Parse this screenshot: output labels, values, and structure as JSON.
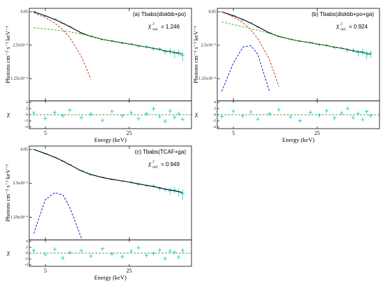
{
  "chart_data": [
    {
      "type": "line",
      "title": "(a) Tbabs(diskbb+po)",
      "annotation": {
        "symbol": "χ",
        "sup": "2",
        "sub": "red",
        "text": "= 1.246"
      },
      "xlabel": "Energy (keV)",
      "ylabel": "Photons cm⁻² s⁻¹ keV⁻¹",
      "xscale": "log",
      "yscale": "log",
      "xlim": [
        3.67,
        83
      ],
      "xticks": [
        5,
        25
      ],
      "ylim": [
        1.7e-05,
        0.068
      ],
      "yticks": [
        0.05,
        {
          "value": 0.0025,
          "label": "2.5x10⁻³"
        },
        {
          "value": 0.000125,
          "label": "1.25x10⁻⁴"
        }
      ],
      "x": [
        4,
        5,
        6,
        7,
        8,
        10,
        12,
        15,
        18,
        22,
        26,
        30,
        35,
        40,
        45,
        50,
        55,
        60,
        65,
        70
      ],
      "data": {
        "color": "#00c8d0",
        "values": [
          0.051,
          0.034,
          0.026,
          0.0175,
          0.0135,
          0.0073,
          0.0057,
          0.0041,
          0.0037,
          0.003,
          0.0028,
          0.0023,
          0.0022,
          0.0018,
          0.0018,
          0.0014,
          0.0015,
          0.0012,
          0.0013,
          0.001
        ],
        "errors": [
          0.002,
          0.0015,
          0.001,
          0.0008,
          0.0006,
          0.0004,
          0.0003,
          0.0003,
          0.0003,
          0.0003,
          0.0003,
          0.0003,
          0.0003,
          0.0003,
          0.0003,
          0.0003,
          0.0004,
          0.0004,
          0.0004,
          0.0004
        ]
      },
      "models": [
        {
          "color": "#000000",
          "dashed": false,
          "values": [
            0.05,
            0.035,
            0.025,
            0.018,
            0.013,
            0.0075,
            0.0055,
            0.0042,
            0.0036,
            0.0031,
            0.0027,
            0.0024,
            0.0021,
            0.0019,
            0.0017,
            0.0015,
            0.0014,
            0.0013,
            0.0012,
            0.0011
          ]
        },
        {
          "color": "#cc2200",
          "dashed": true,
          "values": [
            0.045,
            0.03,
            0.018,
            0.01,
            0.005,
            0.0009,
            0.00012,
            null,
            null,
            null,
            null,
            null,
            null,
            null,
            null,
            null,
            null,
            null,
            null,
            null
          ]
        },
        {
          "color": "#44aa00",
          "dashed": true,
          "values": [
            0.012,
            0.0108,
            0.0098,
            0.009,
            0.0083,
            0.0068,
            0.0055,
            0.0042,
            0.0036,
            0.0031,
            0.0027,
            0.0024,
            0.0021,
            0.0019,
            0.0017,
            0.0015,
            0.0014,
            0.0013,
            0.0012,
            0.0011
          ]
        }
      ],
      "residuals": {
        "ylabel": "χ",
        "ylim": [
          -4.5,
          4.5
        ],
        "yticks": [
          4,
          2,
          0,
          -2,
          -4
        ],
        "values": [
          0.5,
          -1.2,
          0.8,
          -0.3,
          1.5,
          -0.9,
          0.2,
          -1.8,
          1.1,
          -0.4,
          0.7,
          -1.3,
          0.3,
          1.9,
          -0.6,
          -2.1,
          1.2,
          -0.8,
          0.4,
          -1.5
        ]
      }
    },
    {
      "type": "line",
      "title": "(b) Tbabs(diskbb+po+ga)",
      "annotation": {
        "symbol": "χ",
        "sup": "2",
        "sub": "red",
        "text": "= 0.924"
      },
      "xlabel": "Energy (keV)",
      "ylabel": "Photons cm⁻² s⁻¹ keV⁻¹",
      "xscale": "log",
      "yscale": "log",
      "xlim": [
        3.67,
        83
      ],
      "xticks": [
        5,
        25
      ],
      "ylim": [
        1.7e-05,
        0.068
      ],
      "yticks": [
        0.05,
        {
          "value": 0.0025,
          "label": "2.5x10⁻³"
        },
        {
          "value": 0.000125,
          "label": "1.25x10⁻⁴"
        }
      ],
      "x": [
        4,
        5,
        6,
        7,
        8,
        10,
        12,
        15,
        18,
        22,
        26,
        30,
        35,
        40,
        45,
        50,
        55,
        60,
        65,
        70
      ],
      "data": {
        "color": "#00c8d0",
        "values": [
          0.049,
          0.036,
          0.024,
          0.0185,
          0.0128,
          0.0076,
          0.0054,
          0.0043,
          0.0035,
          0.0032,
          0.0026,
          0.0025,
          0.002,
          0.0019,
          0.0016,
          0.0016,
          0.0013,
          0.0014,
          0.0011,
          0.0012
        ],
        "errors": [
          0.002,
          0.0015,
          0.001,
          0.0008,
          0.0006,
          0.0004,
          0.0003,
          0.0003,
          0.0003,
          0.0003,
          0.0003,
          0.0003,
          0.0003,
          0.0003,
          0.0003,
          0.0003,
          0.0004,
          0.0004,
          0.0004,
          0.0004
        ]
      },
      "models": [
        {
          "color": "#000000",
          "dashed": false,
          "values": [
            0.05,
            0.035,
            0.025,
            0.018,
            0.013,
            0.0075,
            0.0055,
            0.0042,
            0.0036,
            0.0031,
            0.0027,
            0.0024,
            0.0021,
            0.0019,
            0.0017,
            0.0015,
            0.0014,
            0.0013,
            0.0012,
            0.0011
          ]
        },
        {
          "color": "#cc2200",
          "dashed": true,
          "values": [
            0.05,
            0.032,
            0.019,
            0.01,
            0.0045,
            0.0007,
            6e-05,
            null,
            null,
            null,
            null,
            null,
            null,
            null,
            null,
            null,
            null,
            null,
            null,
            null
          ]
        },
        {
          "color": "#44aa00",
          "dashed": true,
          "values": [
            0.02,
            0.016,
            0.013,
            0.011,
            0.0095,
            0.0072,
            0.0056,
            0.0042,
            0.0036,
            0.0031,
            0.0027,
            0.0024,
            0.0021,
            0.0019,
            0.0017,
            0.0015,
            0.0014,
            0.0013,
            0.0012,
            0.0011
          ]
        },
        {
          "color": "#0000cc",
          "dashed": true,
          "values": [
            4e-05,
            0.0005,
            0.0021,
            0.0024,
            0.0011,
            4e-05,
            null,
            null,
            null,
            null,
            null,
            null,
            null,
            null,
            null,
            null,
            null,
            null,
            null,
            null
          ]
        }
      ],
      "residuals": {
        "ylabel": "χ",
        "ylim": [
          -4.5,
          4.5
        ],
        "yticks": [
          4,
          2,
          0,
          -2,
          -4
        ],
        "values": [
          -0.6,
          1.1,
          -0.4,
          0.9,
          -1.4,
          0.3,
          1.6,
          -0.7,
          -1.9,
          0.8,
          -0.2,
          1.3,
          -1.1,
          0.5,
          2.0,
          -0.9,
          0.4,
          -1.6,
          1.0,
          -0.3
        ]
      }
    },
    {
      "type": "line",
      "title": "(c) Tbabs(TCAF+ga)",
      "annotation": {
        "symbol": "χ",
        "sup": "2",
        "sub": "red",
        "text": "= 0.949"
      },
      "xlabel": "Energy (keV)",
      "ylabel": "Photons cm⁻² s⁻¹ keV⁻¹",
      "xscale": "log",
      "yscale": "log",
      "xlim": [
        3.67,
        83
      ],
      "xticks": [
        5,
        25
      ],
      "ylim": [
        1.7e-05,
        0.068
      ],
      "yticks": [
        0.05,
        {
          "value": 0.0025,
          "label": "2.5x10⁻³"
        },
        {
          "value": 0.000125,
          "label": "1.25x10⁻⁴"
        }
      ],
      "x": [
        4,
        5,
        6,
        7,
        8,
        10,
        12,
        15,
        18,
        22,
        26,
        30,
        35,
        40,
        45,
        50,
        55,
        60,
        65,
        70
      ],
      "data": {
        "color": "#00c8d0",
        "values": [
          0.05,
          0.0345,
          0.0255,
          0.0178,
          0.0132,
          0.0077,
          0.0053,
          0.0043,
          0.0035,
          0.0031,
          0.0028,
          0.0023,
          0.0021,
          0.002,
          0.0016,
          0.0015,
          0.0013,
          0.0014,
          0.0012,
          0.001
        ],
        "errors": [
          0.002,
          0.0015,
          0.001,
          0.0008,
          0.0006,
          0.0004,
          0.0003,
          0.0003,
          0.0003,
          0.0003,
          0.0003,
          0.0003,
          0.0003,
          0.0003,
          0.0003,
          0.0003,
          0.0004,
          0.0004,
          0.0004,
          0.0004
        ]
      },
      "models": [
        {
          "color": "#000000",
          "dashed": false,
          "values": [
            0.05,
            0.035,
            0.025,
            0.018,
            0.013,
            0.0075,
            0.0055,
            0.0042,
            0.0036,
            0.0031,
            0.0027,
            0.0024,
            0.0021,
            0.0019,
            0.0017,
            0.0015,
            0.0014,
            0.0013,
            0.0012,
            0.0011
          ]
        },
        {
          "color": "#0000cc",
          "dashed": true,
          "values": [
            3e-05,
            0.0006,
            0.0011,
            0.0009,
            0.0003,
            2e-05,
            null,
            null,
            null,
            null,
            null,
            null,
            null,
            null,
            null,
            null,
            null,
            null,
            null,
            null
          ]
        }
      ],
      "residuals": {
        "ylabel": "χ",
        "ylim": [
          -4.5,
          4.5
        ],
        "yticks": [
          4,
          2,
          0,
          -2,
          -4
        ],
        "values": [
          0.9,
          -0.5,
          1.3,
          -1.7,
          0.2,
          0.8,
          -1.0,
          1.5,
          -0.3,
          -1.2,
          0.6,
          1.8,
          -0.8,
          -0.1,
          1.1,
          -1.9,
          0.7,
          0.3,
          -1.4,
          0.9
        ]
      }
    }
  ]
}
